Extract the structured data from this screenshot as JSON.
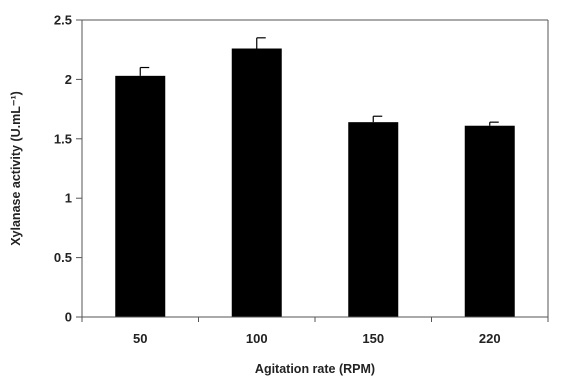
{
  "chart_data": {
    "type": "bar",
    "title": "",
    "xlabel": "Agitation rate (RPM)",
    "ylabel": "Xylanase activity (U.mL⁻¹)",
    "categories": [
      "50",
      "100",
      "150",
      "220"
    ],
    "values": [
      2.03,
      2.26,
      1.64,
      1.61
    ],
    "errors": [
      0.07,
      0.09,
      0.05,
      0.03
    ],
    "ylim": [
      0,
      2.5
    ],
    "yticks": [
      "0",
      "0.5",
      "1",
      "1.5",
      "2",
      "2.5"
    ],
    "grid": false,
    "legend": "none",
    "bar_color": "#000000"
  }
}
